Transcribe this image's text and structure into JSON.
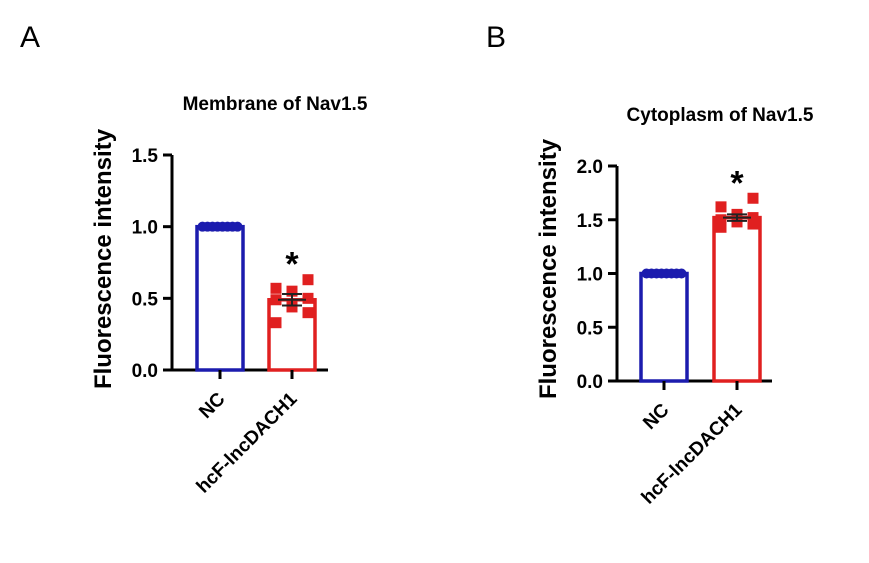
{
  "chart_data": [
    {
      "panel": "A",
      "type": "bar",
      "title": "Membrane of Nav1.5",
      "ylabel": "Fluorescence intensity",
      "xlabel": "",
      "ylim": [
        0,
        1.5
      ],
      "yticks": [
        0.0,
        0.5,
        1.0,
        1.5
      ],
      "ytick_labels": [
        "0.0",
        "0.5",
        "1.0",
        "1.5"
      ],
      "categories": [
        "NC",
        "hcF-lncDACH1"
      ],
      "values": [
        1.0,
        0.49
      ],
      "errors": [
        0.0,
        0.04
      ],
      "colors": [
        "#1c1cae",
        "#e02020"
      ],
      "points": [
        [
          1.0,
          1.0,
          1.0,
          1.0,
          1.0,
          1.0,
          1.0,
          1.0
        ],
        [
          0.33,
          0.4,
          0.44,
          0.49,
          0.5,
          0.55,
          0.57,
          0.63
        ]
      ],
      "significance": [
        "",
        "*"
      ]
    },
    {
      "panel": "B",
      "type": "bar",
      "title": "Cytoplasm  of Nav1.5",
      "ylabel": "Fluorescence intensity",
      "xlabel": "",
      "ylim": [
        0,
        2.0
      ],
      "yticks": [
        0.0,
        0.5,
        1.0,
        1.5,
        2.0
      ],
      "ytick_labels": [
        "0.0",
        "0.5",
        "1.0",
        "1.5",
        "2.0"
      ],
      "categories": [
        "NC",
        "hcF-lncDACH1"
      ],
      "values": [
        1.0,
        1.52
      ],
      "errors": [
        0.0,
        0.03
      ],
      "colors": [
        "#1c1cae",
        "#e02020"
      ],
      "points": [
        [
          1.0,
          1.0,
          1.0,
          1.0,
          1.0,
          1.0,
          1.0,
          1.0
        ],
        [
          1.43,
          1.46,
          1.48,
          1.5,
          1.52,
          1.55,
          1.62,
          1.7
        ]
      ],
      "significance": [
        "",
        "*"
      ]
    }
  ]
}
